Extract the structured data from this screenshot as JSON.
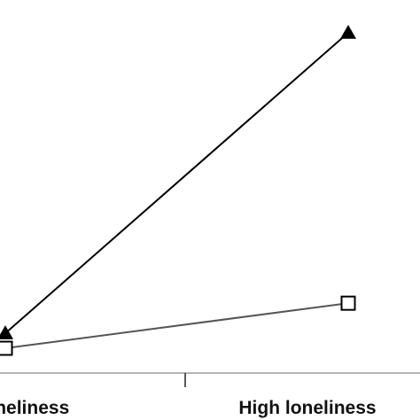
{
  "chart_data": {
    "type": "line",
    "categories": [
      "Low loneliness",
      "High loneliness"
    ],
    "series": [
      {
        "marker": "triangle",
        "color": "#000000",
        "values": [
          0,
          1
        ]
      },
      {
        "marker": "square-open",
        "color": "#555555",
        "values": [
          -0.05,
          0.1
        ]
      }
    ],
    "ylim": [
      -0.1,
      1.05
    ],
    "grid": false,
    "legend": "none",
    "title": "",
    "xlabel": "",
    "ylabel": ""
  }
}
